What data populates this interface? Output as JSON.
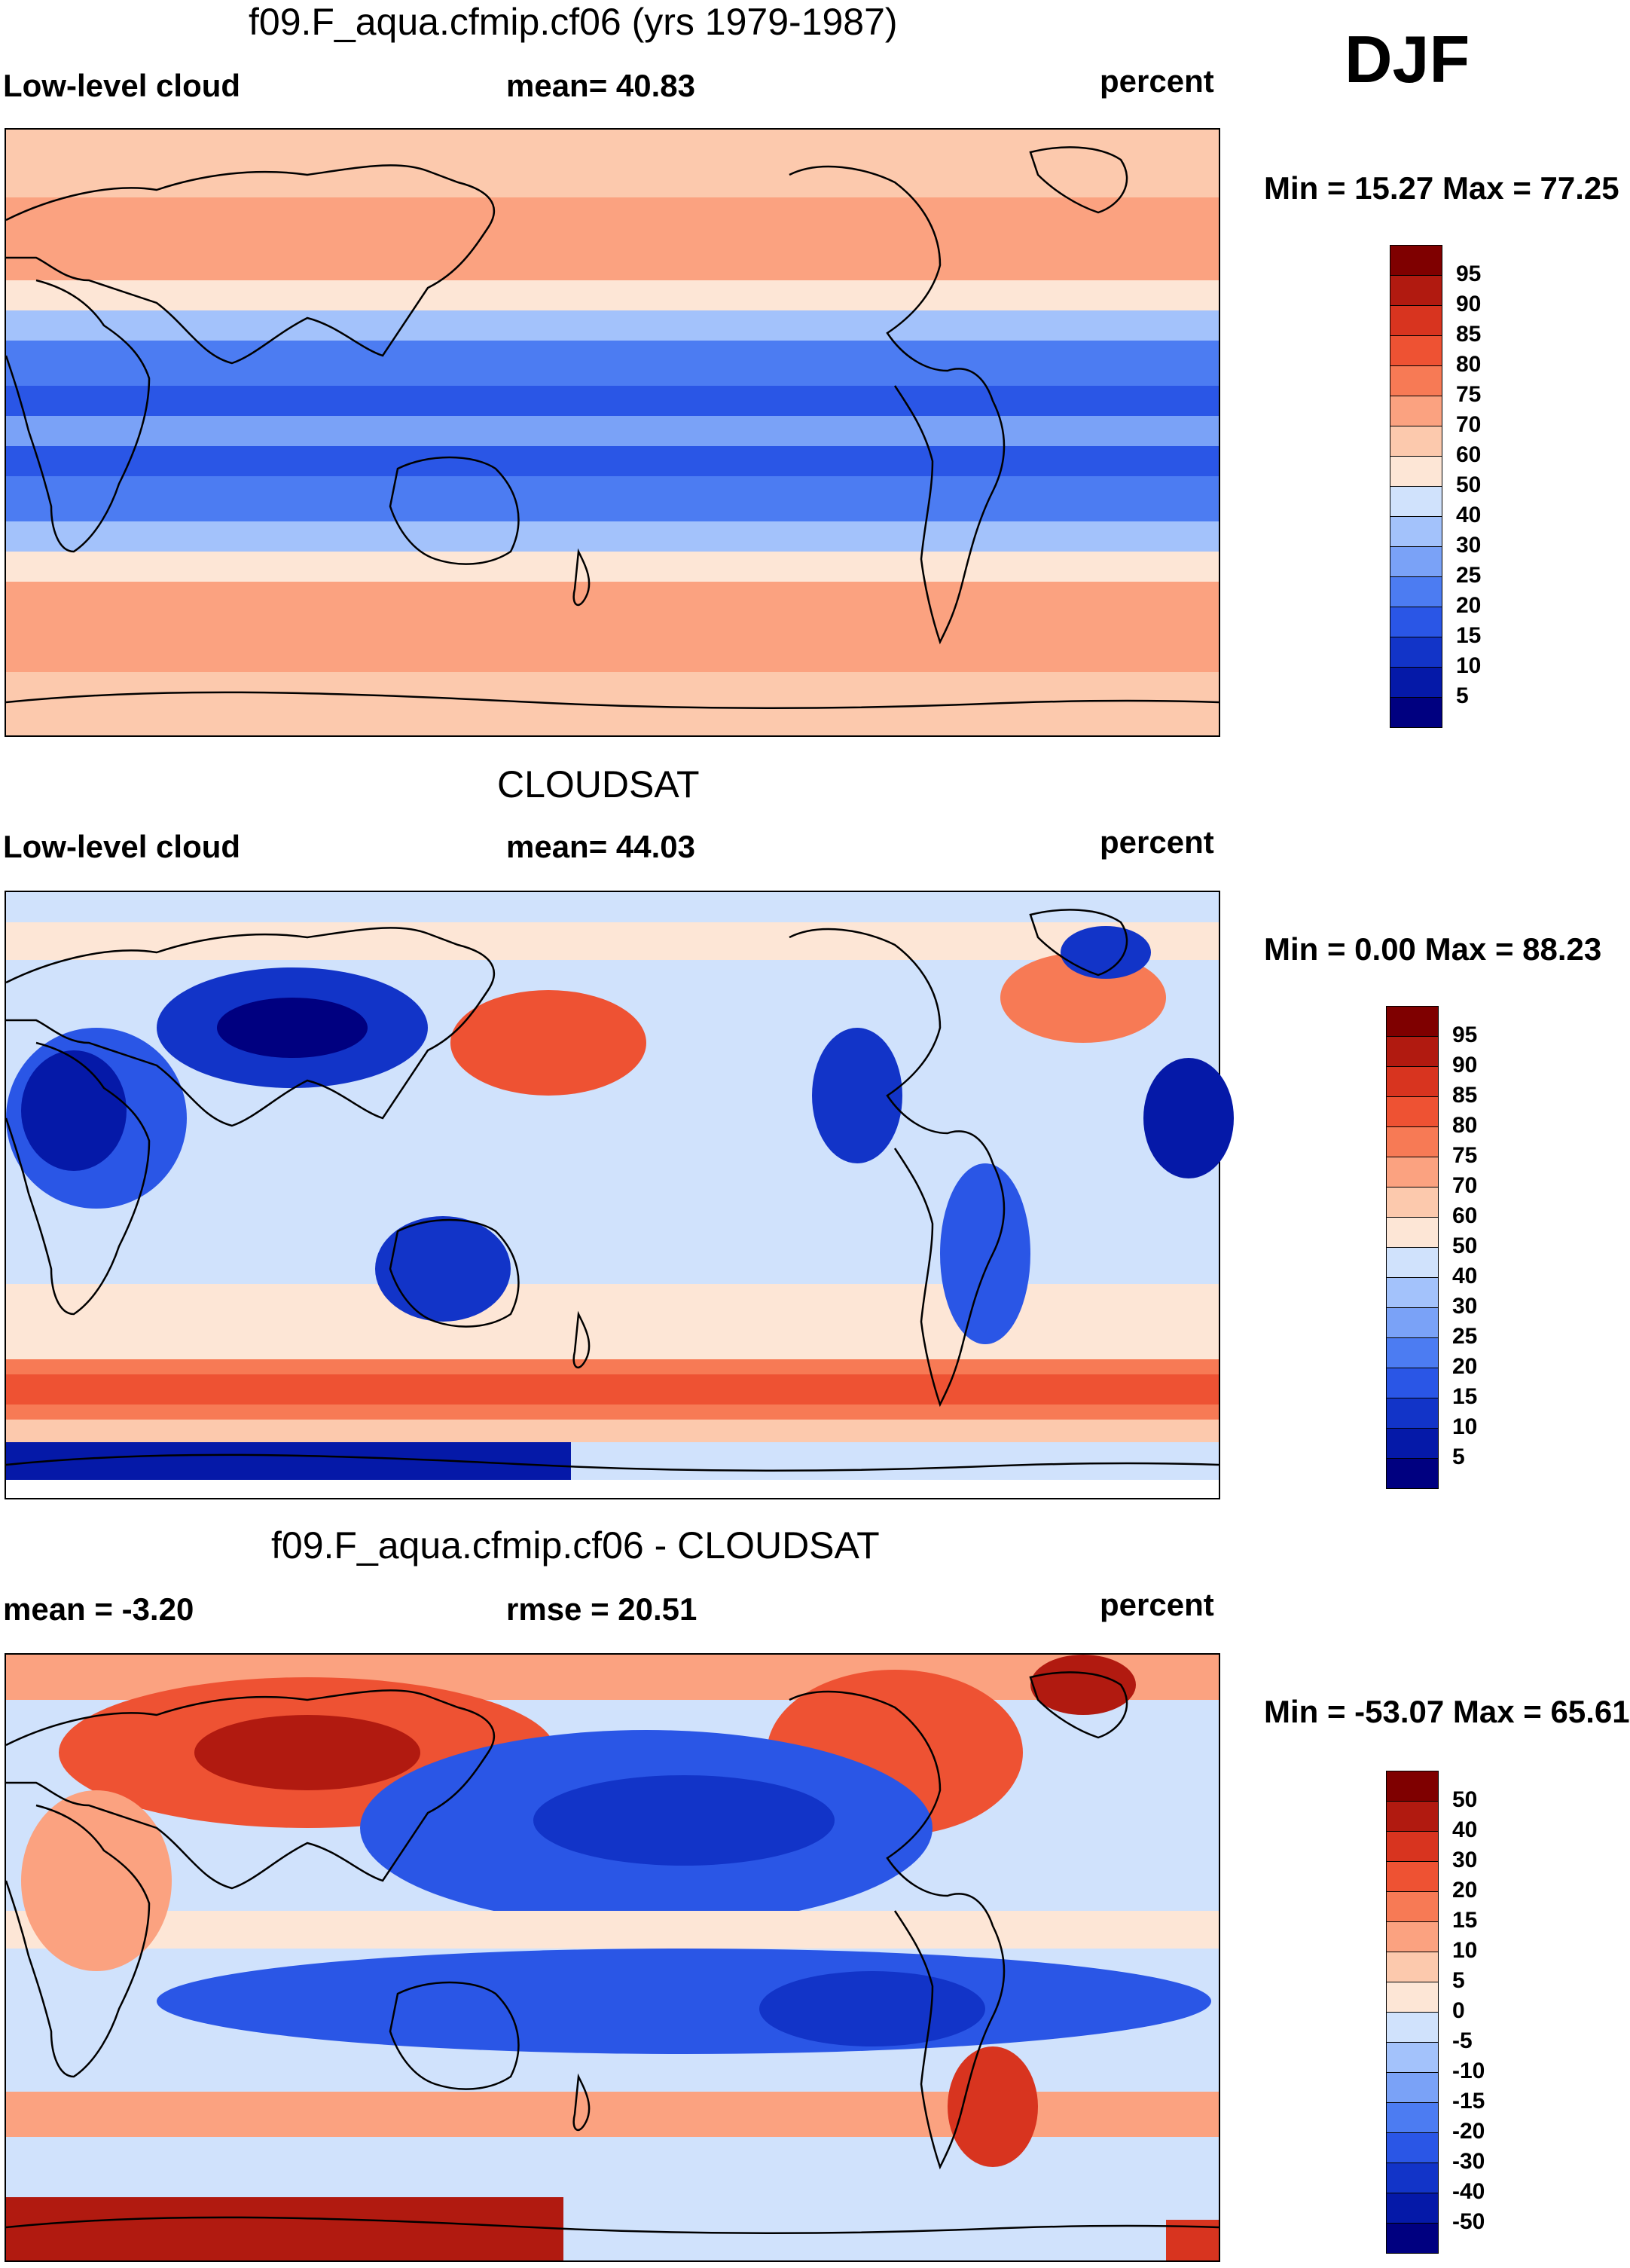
{
  "season": "DJF",
  "colors": {
    "blue_scale": [
      "#000080",
      "#0519a8",
      "#1234c8",
      "#2a56e6",
      "#4c7cf2",
      "#7aa2f7",
      "#a3c2fb",
      "#d0e2fc"
    ],
    "red_scale": [
      "#fde6d6",
      "#fcc9ad",
      "#fba280",
      "#f77a55",
      "#ee5233",
      "#d8341f",
      "#b11a10",
      "#7f0000"
    ],
    "white": "#ffffff"
  },
  "panels": [
    {
      "id": "model",
      "title": "f09.F_aqua.cfmip.cf06 (yrs 1979-1987)",
      "left_label": "Low-level cloud",
      "center_label": "mean=  40.83",
      "right_label": "percent",
      "minmax": "Min =  15.27 Max =  77.25"
    },
    {
      "id": "obs",
      "title": "CLOUDSAT",
      "left_label": "Low-level cloud",
      "center_label": "mean=  44.03",
      "right_label": "percent",
      "minmax": "Min =   0.00 Max =  88.23"
    },
    {
      "id": "diff",
      "title": "f09.F_aqua.cfmip.cf06 - CLOUDSAT",
      "left_label": "mean =  -3.20",
      "center_label": "rmse =  20.51",
      "right_label": "percent",
      "minmax": "Min = -53.07 Max =  65.61"
    }
  ],
  "chart_data": [
    {
      "type": "heatmap",
      "title": "f09.F_aqua.cfmip.cf06 (yrs 1979-1987)",
      "variable": "Low-level cloud",
      "units": "percent",
      "mean": 40.83,
      "min": 15.27,
      "max": 77.25,
      "colorbar_levels": [
        "95",
        "90",
        "85",
        "80",
        "75",
        "70",
        "60",
        "50",
        "40",
        "30",
        "25",
        "20",
        "15",
        "10",
        "5"
      ]
    },
    {
      "type": "heatmap",
      "title": "CLOUDSAT",
      "variable": "Low-level cloud",
      "units": "percent",
      "mean": 44.03,
      "min": 0.0,
      "max": 88.23,
      "colorbar_levels": [
        "95",
        "90",
        "85",
        "80",
        "75",
        "70",
        "60",
        "50",
        "40",
        "30",
        "25",
        "20",
        "15",
        "10",
        "5"
      ]
    },
    {
      "type": "heatmap",
      "title": "f09.F_aqua.cfmip.cf06 - CLOUDSAT",
      "units": "percent",
      "mean": -3.2,
      "rmse": 20.51,
      "min": -53.07,
      "max": 65.61,
      "colorbar_levels": [
        "50",
        "40",
        "30",
        "20",
        "15",
        "10",
        "5",
        "0",
        "-5",
        "-10",
        "-15",
        "-20",
        "-30",
        "-40",
        "-50"
      ]
    }
  ]
}
